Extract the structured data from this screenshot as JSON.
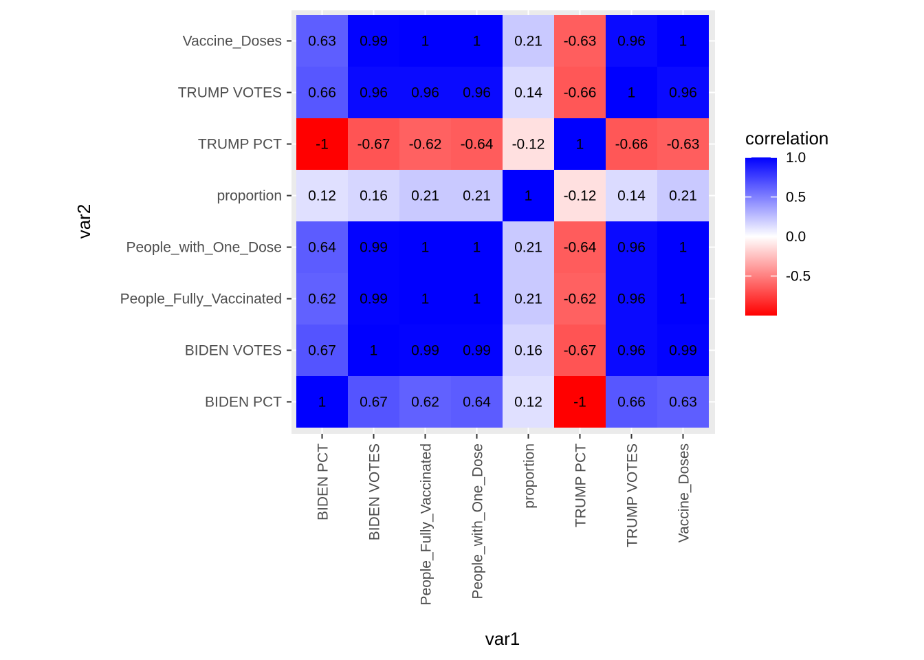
{
  "chart_data": {
    "type": "heatmap",
    "xlabel": "var1",
    "ylabel": "var2",
    "x_categories": [
      "BIDEN PCT",
      "BIDEN VOTES",
      "People_Fully_Vaccinated",
      "People_with_One_Dose",
      "proportion",
      "TRUMP PCT",
      "TRUMP VOTES",
      "Vaccine_Doses"
    ],
    "y_categories": [
      "BIDEN PCT",
      "BIDEN VOTES",
      "People_Fully_Vaccinated",
      "People_with_One_Dose",
      "proportion",
      "TRUMP PCT",
      "TRUMP VOTES",
      "Vaccine_Doses"
    ],
    "values": [
      [
        1,
        0.67,
        0.62,
        0.64,
        0.12,
        -1,
        0.66,
        0.63
      ],
      [
        0.67,
        1,
        0.99,
        0.99,
        0.16,
        -0.67,
        0.96,
        0.99
      ],
      [
        0.62,
        0.99,
        1,
        1,
        0.21,
        -0.62,
        0.96,
        1
      ],
      [
        0.64,
        0.99,
        1,
        1,
        0.21,
        -0.64,
        0.96,
        1
      ],
      [
        0.12,
        0.16,
        0.21,
        0.21,
        1,
        -0.12,
        0.14,
        0.21
      ],
      [
        -1,
        -0.67,
        -0.62,
        -0.64,
        -0.12,
        1,
        -0.66,
        -0.63
      ],
      [
        0.66,
        0.96,
        0.96,
        0.96,
        0.14,
        -0.66,
        1,
        0.96
      ],
      [
        0.63,
        0.99,
        1,
        1,
        0.21,
        -0.63,
        0.96,
        1
      ]
    ],
    "legend": {
      "title": "correlation",
      "ticks": [
        1.0,
        0.5,
        0.0,
        -0.5
      ],
      "tick_labels": [
        "1.0",
        "0.5",
        "0.0",
        "-0.5"
      ],
      "position": "right"
    },
    "color_scale": {
      "low": "#ff0000",
      "mid": "#ffffff",
      "high": "#0000ff",
      "limits": [
        -1,
        1
      ]
    },
    "panel_background": "#ebebeb",
    "grid": true
  }
}
